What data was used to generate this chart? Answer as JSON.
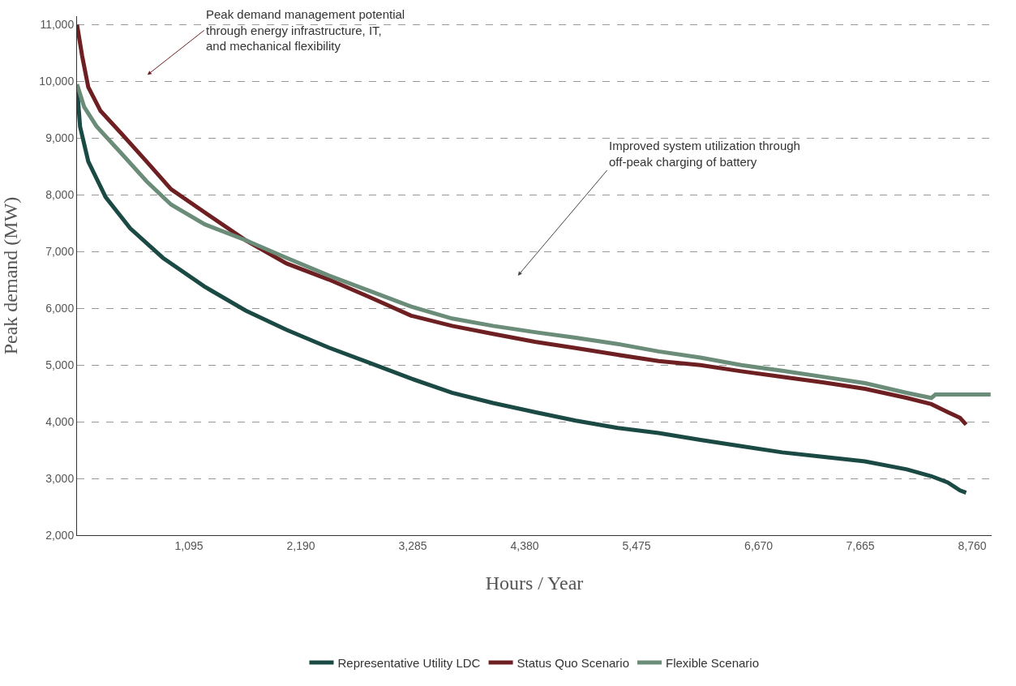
{
  "chart_data": {
    "type": "line",
    "xlabel": "Hours / Year",
    "ylabel": "Peak demand (MW)",
    "xlim": [
      0,
      8950
    ],
    "ylim": [
      2000,
      11150
    ],
    "xticks": [
      {
        "value": 1095,
        "label": "1,095"
      },
      {
        "value": 2190,
        "label": "2,190"
      },
      {
        "value": 3285,
        "label": "3,285"
      },
      {
        "value": 4380,
        "label": "4,380"
      },
      {
        "value": 5475,
        "label": "5,475"
      },
      {
        "value": 6670,
        "label": "6,670"
      },
      {
        "value": 7665,
        "label": "7,665"
      },
      {
        "value": 8760,
        "label": "8,760"
      }
    ],
    "yticks": [
      {
        "value": 2000,
        "label": "2,000"
      },
      {
        "value": 3000,
        "label": "3,000"
      },
      {
        "value": 4000,
        "label": "4,000"
      },
      {
        "value": 5000,
        "label": "5,000"
      },
      {
        "value": 6000,
        "label": "6,000"
      },
      {
        "value": 7000,
        "label": "7,000"
      },
      {
        "value": 8000,
        "label": "8,000"
      },
      {
        "value": 9000,
        "label": "9,000"
      },
      {
        "value": 10000,
        "label": "10,000"
      },
      {
        "value": 11000,
        "label": "11,000"
      }
    ],
    "grid": "y",
    "legend": "bottom",
    "marker": "none",
    "line_style": "solid",
    "series": [
      {
        "name": "Representative Utility LDC",
        "color": "#1b4a44",
        "x": [
          0,
          30,
          110,
          280,
          520,
          840,
          1250,
          1650,
          2050,
          2460,
          2860,
          3270,
          3670,
          4070,
          4480,
          4880,
          5290,
          5690,
          6100,
          6500,
          6900,
          7310,
          7710,
          8120,
          8360,
          8520,
          8640,
          8700
        ],
        "values": [
          9900,
          9200,
          8590,
          7960,
          7410,
          6890,
          6380,
          5960,
          5620,
          5310,
          5040,
          4760,
          4510,
          4330,
          4170,
          4020,
          3890,
          3800,
          3680,
          3570,
          3460,
          3380,
          3300,
          3160,
          3040,
          2930,
          2790,
          2750
        ]
      },
      {
        "name": "Status Quo Scenario",
        "color": "#6e1f22",
        "x": [
          0,
          50,
          110,
          230,
          440,
          680,
          920,
          1250,
          1650,
          2050,
          2460,
          2860,
          3270,
          3670,
          4070,
          4480,
          4880,
          5290,
          5690,
          6100,
          6500,
          6900,
          7310,
          7710,
          8120,
          8360,
          8520,
          8640,
          8700
        ],
        "values": [
          11000,
          10450,
          9900,
          9480,
          9070,
          8590,
          8100,
          7690,
          7200,
          6790,
          6510,
          6200,
          5870,
          5690,
          5550,
          5410,
          5300,
          5180,
          5070,
          5000,
          4890,
          4790,
          4690,
          4580,
          4420,
          4310,
          4170,
          4070,
          3950
        ]
      },
      {
        "name": "Flexible Scenario",
        "color": "#6a8c78",
        "x": [
          0,
          70,
          190,
          440,
          680,
          920,
          1250,
          1650,
          2050,
          2460,
          2860,
          3270,
          3670,
          4070,
          4480,
          4880,
          5290,
          5690,
          6100,
          6500,
          6900,
          7310,
          7710,
          8120,
          8360,
          8400,
          8940
        ],
        "values": [
          9950,
          9550,
          9210,
          8720,
          8240,
          7830,
          7480,
          7200,
          6890,
          6580,
          6310,
          6030,
          5820,
          5690,
          5580,
          5480,
          5370,
          5240,
          5130,
          5000,
          4900,
          4790,
          4680,
          4510,
          4420,
          4480,
          4480
        ]
      }
    ],
    "annotations": [
      "Peak demand management potential\nthrough energy infrastructure, IT,\nand mechanical flexibility",
      "Improved system utilization through\noff-peak charging of battery"
    ]
  }
}
